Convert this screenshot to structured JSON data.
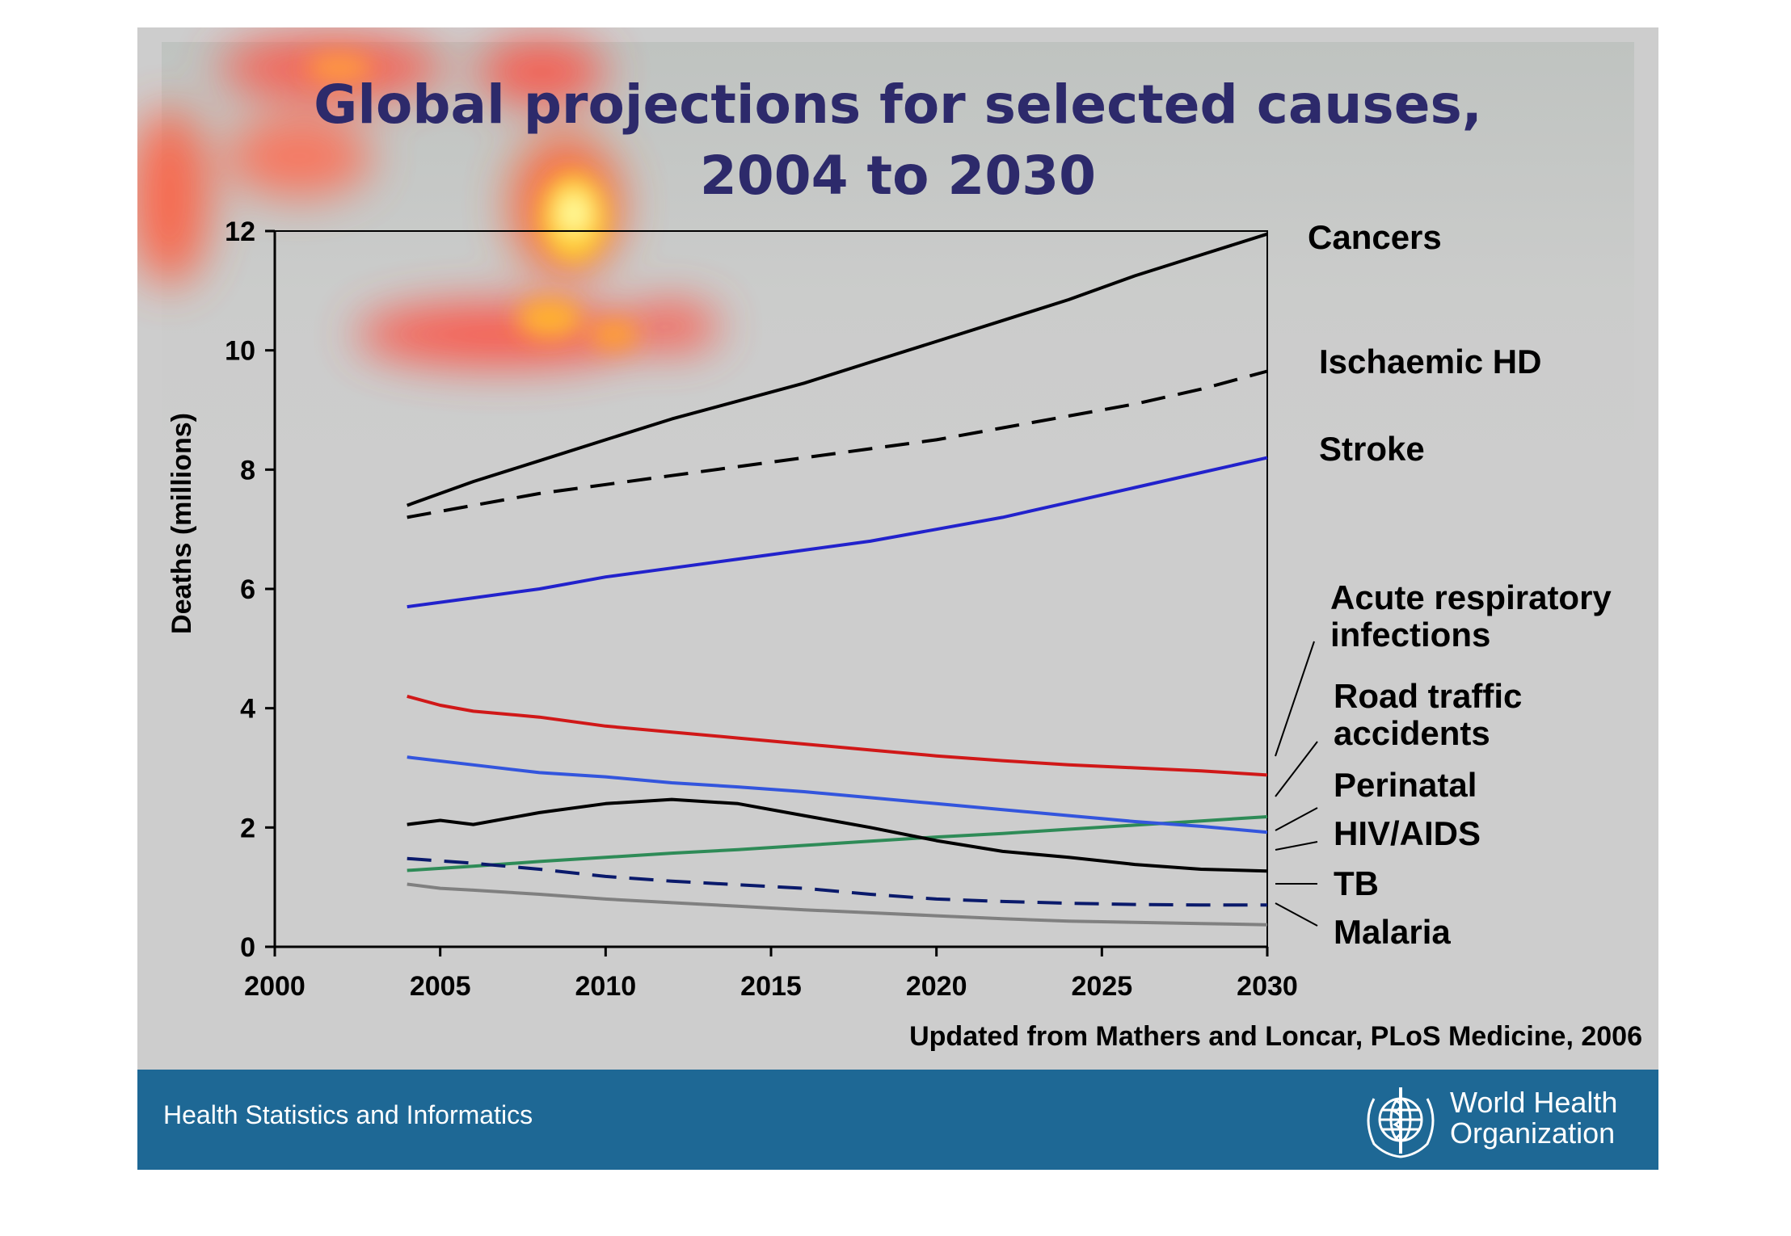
{
  "title_line1": "Global projections for selected causes,",
  "title_line2": "2004 to 2030",
  "source": "Updated from Mathers and Loncar, PLoS Medicine, 2006",
  "footer": {
    "left_text": "Health Statistics and Informatics",
    "org_line1": "World Health",
    "org_line2": "Organization",
    "logo_icon": "who-emblem-icon"
  },
  "colors": {
    "title": "#2d2a6b",
    "footer_bg": "#1e6895",
    "slide_bg": "#cdcdcd"
  },
  "chart_data": {
    "type": "line",
    "title": "Global projections for selected causes, 2004 to 2030",
    "xlabel": "",
    "ylabel": "Deaths (millions)",
    "xlim": [
      2000,
      2030
    ],
    "ylim": [
      0,
      12
    ],
    "xticks": [
      2000,
      2005,
      2010,
      2015,
      2020,
      2025,
      2030
    ],
    "yticks": [
      0,
      2,
      4,
      6,
      8,
      10,
      12
    ],
    "grid": false,
    "series": [
      {
        "name": "Cancers",
        "color": "#000000",
        "dash": "solid",
        "points": [
          [
            2004,
            7.4
          ],
          [
            2006,
            7.8
          ],
          [
            2008,
            8.15
          ],
          [
            2010,
            8.5
          ],
          [
            2012,
            8.85
          ],
          [
            2014,
            9.15
          ],
          [
            2016,
            9.45
          ],
          [
            2018,
            9.8
          ],
          [
            2020,
            10.15
          ],
          [
            2022,
            10.5
          ],
          [
            2024,
            10.85
          ],
          [
            2026,
            11.25
          ],
          [
            2028,
            11.6
          ],
          [
            2030,
            11.95
          ]
        ]
      },
      {
        "name": "Ischaemic HD",
        "color": "#000000",
        "dash": "dashed",
        "points": [
          [
            2004,
            7.2
          ],
          [
            2006,
            7.4
          ],
          [
            2008,
            7.6
          ],
          [
            2010,
            7.75
          ],
          [
            2012,
            7.9
          ],
          [
            2014,
            8.05
          ],
          [
            2016,
            8.2
          ],
          [
            2018,
            8.35
          ],
          [
            2020,
            8.5
          ],
          [
            2022,
            8.7
          ],
          [
            2024,
            8.9
          ],
          [
            2026,
            9.1
          ],
          [
            2028,
            9.35
          ],
          [
            2030,
            9.65
          ]
        ]
      },
      {
        "name": "Stroke",
        "color": "#2222cc",
        "dash": "solid",
        "points": [
          [
            2004,
            5.7
          ],
          [
            2006,
            5.85
          ],
          [
            2008,
            6.0
          ],
          [
            2010,
            6.2
          ],
          [
            2012,
            6.35
          ],
          [
            2014,
            6.5
          ],
          [
            2016,
            6.65
          ],
          [
            2018,
            6.8
          ],
          [
            2020,
            7.0
          ],
          [
            2022,
            7.2
          ],
          [
            2024,
            7.45
          ],
          [
            2026,
            7.7
          ],
          [
            2028,
            7.95
          ],
          [
            2030,
            8.2
          ]
        ]
      },
      {
        "name": "Acute respiratory infections",
        "color": "#d01818",
        "dash": "solid",
        "points": [
          [
            2004,
            4.2
          ],
          [
            2005,
            4.05
          ],
          [
            2006,
            3.95
          ],
          [
            2008,
            3.85
          ],
          [
            2010,
            3.7
          ],
          [
            2012,
            3.6
          ],
          [
            2014,
            3.5
          ],
          [
            2016,
            3.4
          ],
          [
            2018,
            3.3
          ],
          [
            2020,
            3.2
          ],
          [
            2022,
            3.12
          ],
          [
            2024,
            3.05
          ],
          [
            2026,
            3.0
          ],
          [
            2028,
            2.95
          ],
          [
            2030,
            2.88
          ]
        ]
      },
      {
        "name": "Road traffic accidents",
        "color": "#2e8b57",
        "dash": "solid",
        "points": [
          [
            2004,
            1.28
          ],
          [
            2006,
            1.35
          ],
          [
            2008,
            1.43
          ],
          [
            2010,
            1.5
          ],
          [
            2012,
            1.57
          ],
          [
            2014,
            1.63
          ],
          [
            2016,
            1.7
          ],
          [
            2018,
            1.77
          ],
          [
            2020,
            1.84
          ],
          [
            2022,
            1.9
          ],
          [
            2024,
            1.97
          ],
          [
            2026,
            2.04
          ],
          [
            2028,
            2.11
          ],
          [
            2030,
            2.18
          ]
        ]
      },
      {
        "name": "Perinatal",
        "color": "#3355dd",
        "dash": "solid",
        "points": [
          [
            2004,
            3.18
          ],
          [
            2006,
            3.05
          ],
          [
            2008,
            2.92
          ],
          [
            2010,
            2.85
          ],
          [
            2012,
            2.75
          ],
          [
            2014,
            2.68
          ],
          [
            2016,
            2.6
          ],
          [
            2018,
            2.5
          ],
          [
            2020,
            2.4
          ],
          [
            2022,
            2.3
          ],
          [
            2024,
            2.2
          ],
          [
            2026,
            2.1
          ],
          [
            2028,
            2.02
          ],
          [
            2030,
            1.92
          ]
        ]
      },
      {
        "name": "HIV/AIDS",
        "color": "#000000",
        "dash": "solid",
        "points": [
          [
            2004,
            2.05
          ],
          [
            2005,
            2.12
          ],
          [
            2006,
            2.05
          ],
          [
            2008,
            2.25
          ],
          [
            2010,
            2.4
          ],
          [
            2012,
            2.47
          ],
          [
            2014,
            2.4
          ],
          [
            2016,
            2.2
          ],
          [
            2018,
            2.0
          ],
          [
            2020,
            1.78
          ],
          [
            2022,
            1.6
          ],
          [
            2024,
            1.5
          ],
          [
            2026,
            1.38
          ],
          [
            2028,
            1.3
          ],
          [
            2030,
            1.27
          ]
        ]
      },
      {
        "name": "TB",
        "color": "#0a1a6b",
        "dash": "dashed",
        "points": [
          [
            2004,
            1.48
          ],
          [
            2006,
            1.4
          ],
          [
            2008,
            1.3
          ],
          [
            2010,
            1.18
          ],
          [
            2012,
            1.1
          ],
          [
            2014,
            1.04
          ],
          [
            2016,
            0.98
          ],
          [
            2018,
            0.88
          ],
          [
            2020,
            0.8
          ],
          [
            2022,
            0.76
          ],
          [
            2024,
            0.73
          ],
          [
            2026,
            0.71
          ],
          [
            2028,
            0.7
          ],
          [
            2030,
            0.7
          ]
        ]
      },
      {
        "name": "Malaria",
        "color": "#808080",
        "dash": "solid",
        "points": [
          [
            2004,
            1.05
          ],
          [
            2005,
            0.98
          ],
          [
            2006,
            0.95
          ],
          [
            2008,
            0.88
          ],
          [
            2010,
            0.8
          ],
          [
            2012,
            0.74
          ],
          [
            2014,
            0.68
          ],
          [
            2016,
            0.62
          ],
          [
            2018,
            0.57
          ],
          [
            2020,
            0.52
          ],
          [
            2022,
            0.47
          ],
          [
            2024,
            0.43
          ],
          [
            2026,
            0.41
          ],
          [
            2028,
            0.39
          ],
          [
            2030,
            0.37
          ]
        ]
      }
    ],
    "labels": [
      {
        "series": "Cancers",
        "lines": [
          "Cancers"
        ]
      },
      {
        "series": "Ischaemic HD",
        "lines": [
          "Ischaemic HD"
        ]
      },
      {
        "series": "Stroke",
        "lines": [
          "Stroke"
        ]
      },
      {
        "series": "Acute respiratory infections",
        "lines": [
          "Acute respiratory",
          "infections"
        ]
      },
      {
        "series": "Road traffic accidents",
        "lines": [
          "Road traffic",
          "accidents"
        ]
      },
      {
        "series": "Perinatal",
        "lines": [
          "Perinatal"
        ]
      },
      {
        "series": "HIV/AIDS",
        "lines": [
          "HIV/AIDS"
        ]
      },
      {
        "series": "TB",
        "lines": [
          "TB"
        ]
      },
      {
        "series": "Malaria",
        "lines": [
          "Malaria"
        ]
      }
    ]
  }
}
